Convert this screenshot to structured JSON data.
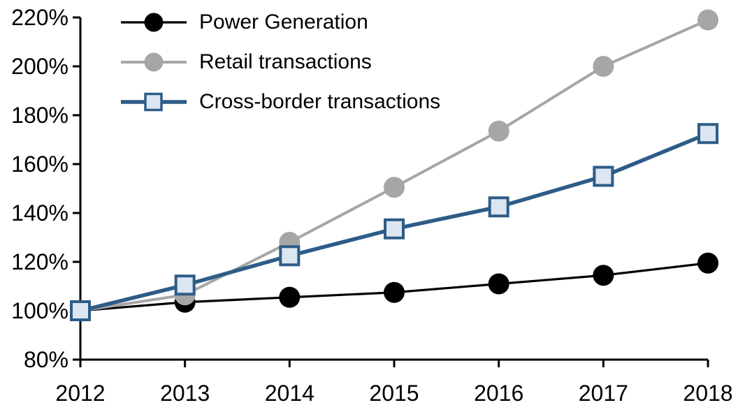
{
  "chart_data": {
    "type": "line",
    "title": "",
    "x": [
      2012,
      2013,
      2014,
      2015,
      2016,
      2017,
      2018
    ],
    "x_tick_labels": [
      "2012",
      "2013",
      "2014",
      "2015",
      "2016",
      "2017",
      "2018"
    ],
    "y_axis": {
      "min": 80,
      "max": 220,
      "step": 20,
      "tick_labels": [
        "80%",
        "100%",
        "120%",
        "140%",
        "160%",
        "180%",
        "200%",
        "220%"
      ]
    },
    "ylim": [
      80,
      220
    ],
    "grid": false,
    "legend_position": "top-left",
    "axis_color": "#000000",
    "background_color": "#ffffff",
    "series": [
      {
        "name": "Power Generation",
        "values": [
          100,
          103.5,
          105.5,
          107.5,
          111,
          114.5,
          119.5
        ],
        "color": "#000000",
        "marker": "circle",
        "marker_fill": "#000000",
        "line_width": 3.2
      },
      {
        "name": "Retail transactions",
        "values": [
          100,
          106.5,
          128,
          150.5,
          173.5,
          200,
          219
        ],
        "color": "#a6a6a6",
        "marker": "circle",
        "marker_fill": "#a6a6a6",
        "line_width": 4
      },
      {
        "name": "Cross-border transactions",
        "values": [
          100,
          110.5,
          122.5,
          133.5,
          142.5,
          155,
          172.5
        ],
        "color": "#2e5c88",
        "marker": "square",
        "marker_fill": "#dce6f2",
        "line_width": 5.5
      }
    ]
  }
}
